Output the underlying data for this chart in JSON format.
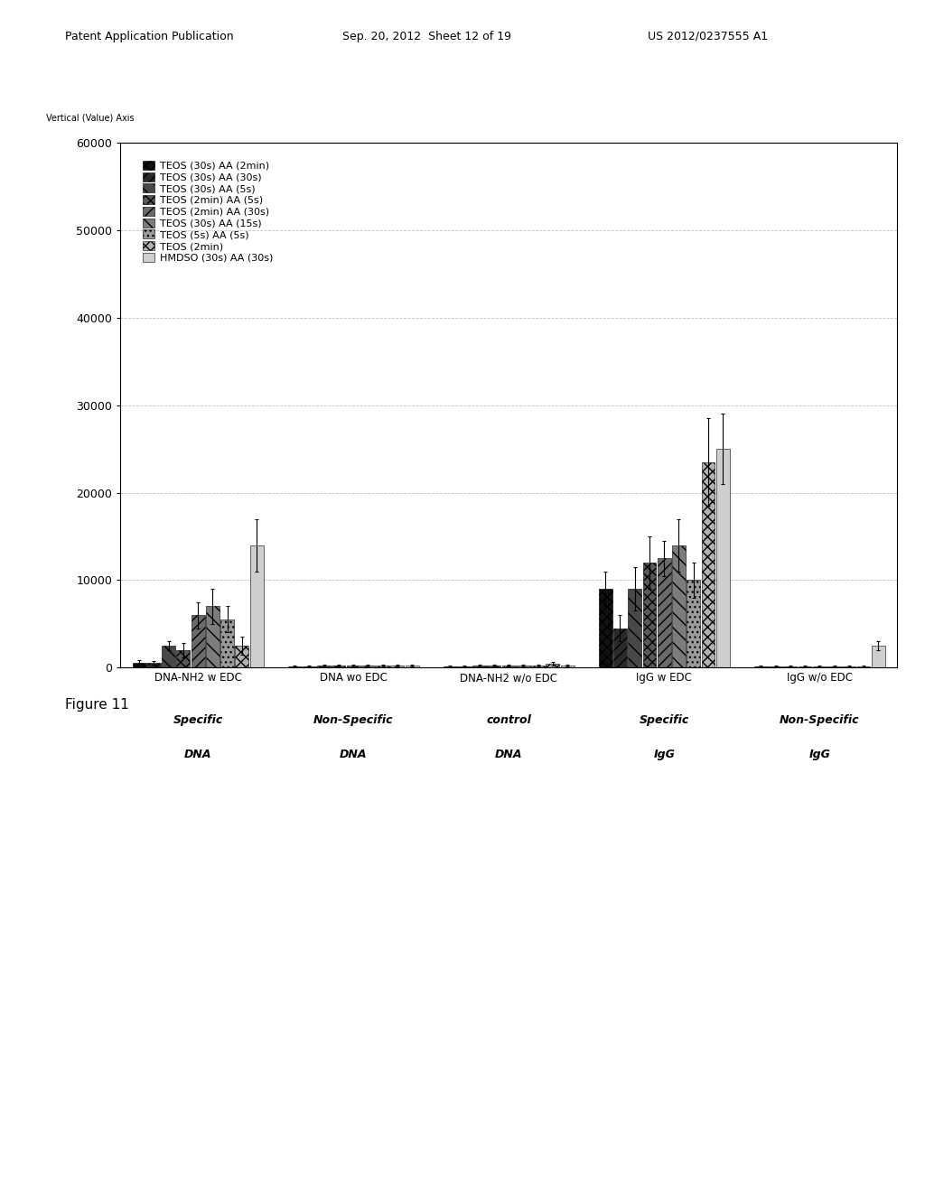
{
  "series_labels": [
    "TEOS (30s) AA (2min)",
    "TEOS (30s) AA (30s)",
    "TEOS (30s) AA (5s)",
    "TEOS (2min) AA (5s)",
    "TEOS (2min) AA (30s)",
    "TEOS (30s) AA (15s)",
    "TEOS (5s) AA (5s)",
    "TEOS (2min)",
    "HMDSO (30s) AA (30s)"
  ],
  "groups": [
    "DNA-NH2 w EDC",
    "DNA wo EDC",
    "DNA-NH2 w/o EDC",
    "IgG w EDC",
    "IgG w/o EDC"
  ],
  "group_sublabels_1": [
    "Specific",
    "Non-Specific",
    "control",
    "Specific",
    "Non-Specific"
  ],
  "group_sublabels_2": [
    "DNA",
    "DNA",
    "DNA",
    "IgG",
    "IgG"
  ],
  "values": [
    [
      500,
      150,
      150,
      9000,
      150
    ],
    [
      500,
      150,
      150,
      4500,
      150
    ],
    [
      2500,
      200,
      200,
      9000,
      150
    ],
    [
      2000,
      250,
      250,
      12000,
      150
    ],
    [
      6000,
      250,
      200,
      12500,
      150
    ],
    [
      7000,
      250,
      200,
      14000,
      150
    ],
    [
      5500,
      250,
      200,
      10000,
      150
    ],
    [
      2500,
      250,
      400,
      23500,
      150
    ],
    [
      14000,
      250,
      250,
      25000,
      2500
    ]
  ],
  "error_bars": [
    [
      300,
      100,
      100,
      2000,
      100
    ],
    [
      200,
      100,
      100,
      1500,
      100
    ],
    [
      500,
      100,
      100,
      2500,
      100
    ],
    [
      800,
      100,
      100,
      3000,
      100
    ],
    [
      1500,
      100,
      100,
      2000,
      100
    ],
    [
      2000,
      100,
      100,
      3000,
      100
    ],
    [
      1500,
      100,
      100,
      2000,
      100
    ],
    [
      1000,
      100,
      200,
      5000,
      100
    ],
    [
      3000,
      100,
      100,
      4000,
      500
    ]
  ],
  "ylim": [
    0,
    60000
  ],
  "yticks": [
    0,
    10000,
    20000,
    30000,
    40000,
    50000,
    60000
  ],
  "ylabel": "Vertical (Value) Axis",
  "figure_label": "Figure 11",
  "background_color": "#ffffff",
  "grid_color": "#bbbbbb"
}
